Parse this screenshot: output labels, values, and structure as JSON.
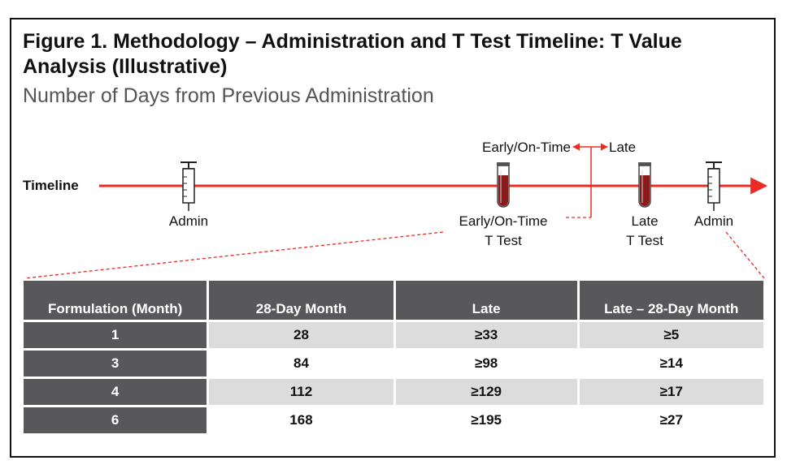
{
  "title": "Figure 1. Methodology – Administration and T Test Timeline: T Value Analysis (Illustrative)",
  "subtitle": "Number of Days from Previous Administration",
  "timeline": {
    "label": "Timeline",
    "top_labels": {
      "early": "Early/On-Time",
      "late": "Late"
    },
    "events": [
      {
        "id": "admin-1",
        "icon": "syringe-icon",
        "label_lines": [
          "Admin"
        ]
      },
      {
        "id": "early-test",
        "icon": "test-tube-icon",
        "label_lines": [
          "Early/On-Time",
          "T Test"
        ]
      },
      {
        "id": "late-test",
        "icon": "test-tube-icon",
        "label_lines": [
          "Late",
          "T Test"
        ]
      },
      {
        "id": "admin-2",
        "icon": "syringe-icon",
        "label_lines": [
          "Admin"
        ]
      }
    ],
    "colors": {
      "timeline": "#ee2a24",
      "tube_fill": "#8b1a1a"
    }
  },
  "table": {
    "headers": [
      "Formulation (Month)",
      "28-Day Month",
      "Late",
      "Late – 28-Day Month"
    ],
    "rows": [
      [
        "1",
        "28",
        "≥33",
        "≥5"
      ],
      [
        "3",
        "84",
        "≥98",
        "≥14"
      ],
      [
        "4",
        "112",
        "≥129",
        "≥17"
      ],
      [
        "6",
        "168",
        "≥195",
        "≥27"
      ]
    ],
    "colors": {
      "header_bg": "#58585a",
      "stripe": "#dcdcdc"
    }
  }
}
